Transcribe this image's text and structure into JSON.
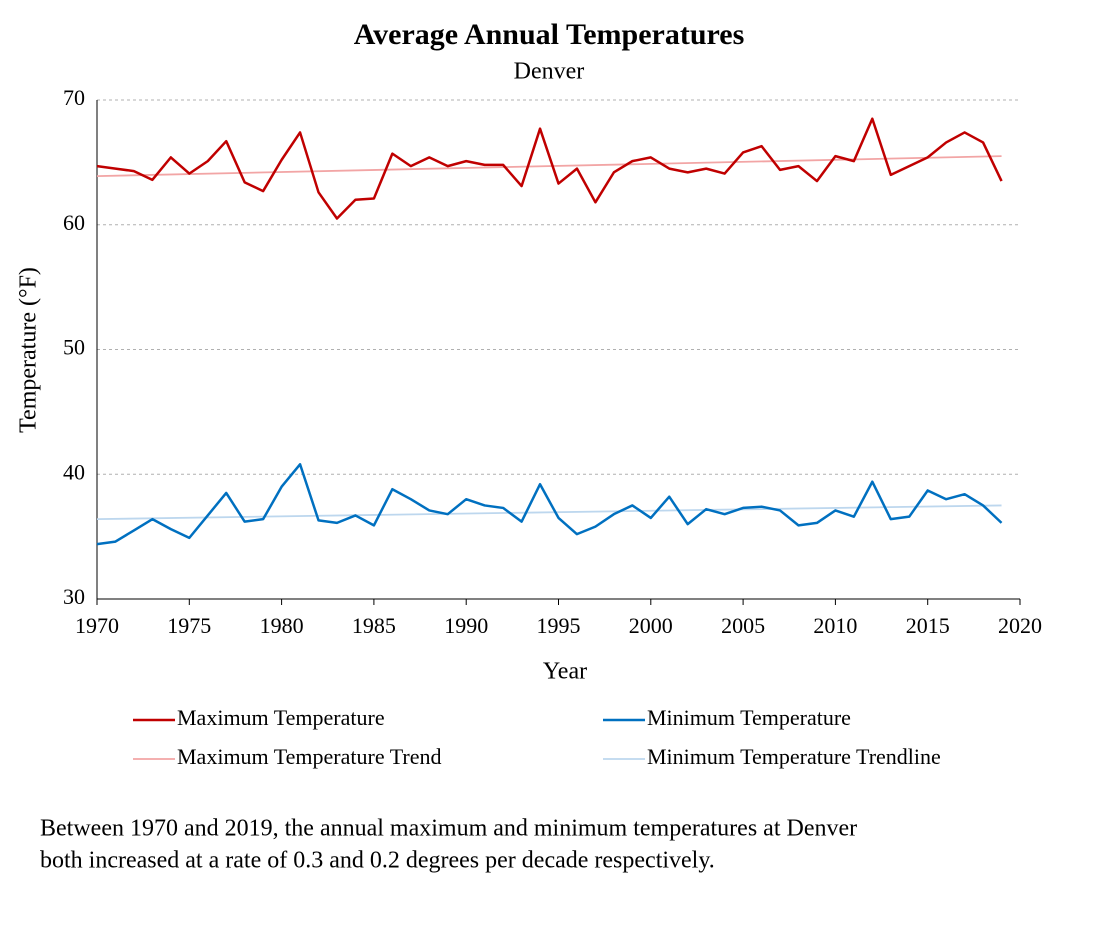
{
  "chart_data": {
    "type": "line",
    "title": "Average Annual Temperatures",
    "subtitle": "Denver",
    "x_label": "Year",
    "y_label": "Temperature (°F)",
    "x": [
      1970,
      1971,
      1972,
      1973,
      1974,
      1975,
      1976,
      1977,
      1978,
      1979,
      1980,
      1981,
      1982,
      1983,
      1984,
      1985,
      1986,
      1987,
      1988,
      1989,
      1990,
      1991,
      1992,
      1993,
      1994,
      1995,
      1996,
      1997,
      1998,
      1999,
      2000,
      2001,
      2002,
      2003,
      2004,
      2005,
      2006,
      2007,
      2008,
      2009,
      2010,
      2011,
      2012,
      2013,
      2014,
      2015,
      2016,
      2017,
      2018,
      2019
    ],
    "series": [
      {
        "name": "Maximum Temperature",
        "color": "#c00000",
        "width": 2.5,
        "values": [
          64.7,
          64.5,
          64.3,
          63.6,
          65.4,
          64.1,
          65.1,
          66.7,
          63.4,
          62.7,
          65.2,
          67.4,
          62.6,
          60.5,
          62.0,
          62.1,
          65.7,
          64.7,
          65.4,
          64.7,
          65.1,
          64.8,
          64.8,
          63.1,
          67.7,
          63.3,
          64.5,
          61.8,
          64.2,
          65.1,
          65.4,
          64.5,
          64.2,
          64.5,
          64.1,
          65.8,
          66.3,
          64.4,
          64.7,
          63.5,
          65.5,
          65.1,
          68.5,
          64.0,
          64.7,
          65.4,
          66.6,
          67.4,
          66.6,
          63.5
        ]
      },
      {
        "name": "Minimum Temperature",
        "color": "#0070c0",
        "width": 2.5,
        "values": [
          34.4,
          34.6,
          35.5,
          36.4,
          35.6,
          34.9,
          36.7,
          38.5,
          36.2,
          36.4,
          39.0,
          40.8,
          36.3,
          36.1,
          36.7,
          35.9,
          38.8,
          38.0,
          37.1,
          36.8,
          38.0,
          37.5,
          37.3,
          36.2,
          39.2,
          36.5,
          35.2,
          35.8,
          36.8,
          37.5,
          36.5,
          38.2,
          36.0,
          37.2,
          36.8,
          37.3,
          37.4,
          37.1,
          35.9,
          36.1,
          37.1,
          36.6,
          39.4,
          36.4,
          36.6,
          38.7,
          38.0,
          38.4,
          37.5,
          36.1
        ]
      },
      {
        "name": "Maximum Temperature Trend",
        "color": "#f2a5a5",
        "width": 1.8,
        "x": [
          1970,
          2019
        ],
        "values": [
          63.9,
          65.5
        ]
      },
      {
        "name": "Minimum Temperature Trendline",
        "color": "#bdd7ee",
        "width": 1.8,
        "x": [
          1970,
          2019
        ],
        "values": [
          36.4,
          37.5
        ]
      }
    ],
    "xlim": [
      1970,
      2020
    ],
    "xticks": [
      1970,
      1975,
      1980,
      1985,
      1990,
      1995,
      2000,
      2005,
      2010,
      2015,
      2020
    ],
    "ylim": [
      30,
      70
    ],
    "yticks": [
      30,
      40,
      50,
      60,
      70
    ],
    "grid": true,
    "caption": [
      "Between 1970 and 2019, the annual maximum and minimum temperatures at Denver",
      "both increased at a rate of 0.3 and 0.2 degrees per decade respectively."
    ]
  }
}
